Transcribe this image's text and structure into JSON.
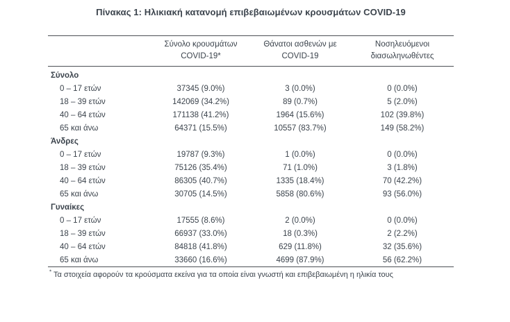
{
  "title": "Πίνακας 1: Ηλικιακή κατανομή επιβεβαιωμένων κρουσμάτων COVID-19",
  "colors": {
    "text": "#3b434c",
    "rule": "#4b4f54",
    "background": "#ffffff"
  },
  "table": {
    "columns": [
      {
        "line1": "Σύνολο κρουσμάτων",
        "line2": "COVID-19*"
      },
      {
        "line1": "Θάνατοι ασθενών με",
        "line2": "COVID-19"
      },
      {
        "line1": "Νοσηλευόμενοι",
        "line2": "διασωληνωθέντες"
      }
    ],
    "sections": [
      {
        "label": "Σύνολο",
        "rows": [
          {
            "label": "0 – 17 ετών",
            "cases": "37345 (9.0%)",
            "deaths": "3 (0.0%)",
            "intubated": "0 (0.0%)"
          },
          {
            "label": "18 – 39 ετών",
            "cases": "142069 (34.2%)",
            "deaths": "89 (0.7%)",
            "intubated": "5 (2.0%)"
          },
          {
            "label": "40 – 64 ετών",
            "cases": "171138 (41.2%)",
            "deaths": "1964 (15.6%)",
            "intubated": "102 (39.8%)"
          },
          {
            "label": "65 και άνω",
            "cases": "64371 (15.5%)",
            "deaths": "10557 (83.7%)",
            "intubated": "149 (58.2%)"
          }
        ]
      },
      {
        "label": "Άνδρες",
        "rows": [
          {
            "label": "0 – 17 ετών",
            "cases": "19787 (9.3%)",
            "deaths": "1 (0.0%)",
            "intubated": "0 (0.0%)"
          },
          {
            "label": "18 – 39 ετών",
            "cases": "75126 (35.4%)",
            "deaths": "71 (1.0%)",
            "intubated": "3 (1.8%)"
          },
          {
            "label": "40 – 64 ετών",
            "cases": "86305 (40.7%)",
            "deaths": "1335 (18.4%)",
            "intubated": "70 (42.2%)"
          },
          {
            "label": "65 και άνω",
            "cases": "30705 (14.5%)",
            "deaths": "5858 (80.6%)",
            "intubated": "93 (56.0%)"
          }
        ]
      },
      {
        "label": "Γυναίκες",
        "rows": [
          {
            "label": "0 – 17 ετών",
            "cases": "17555 (8.6%)",
            "deaths": "2 (0.0%)",
            "intubated": "0 (0.0%)"
          },
          {
            "label": "18 – 39 ετών",
            "cases": "66937 (33.0%)",
            "deaths": "18 (0.3%)",
            "intubated": "2 (2.2%)"
          },
          {
            "label": "40 – 64 ετών",
            "cases": "84818 (41.8%)",
            "deaths": "629 (11.8%)",
            "intubated": "32 (35.6%)"
          },
          {
            "label": "65 και άνω",
            "cases": "33660 (16.6%)",
            "deaths": "4699 (87.9%)",
            "intubated": "56 (62.2%)"
          }
        ]
      }
    ]
  },
  "footnote": {
    "marker": "*",
    "text": "Τα στοιχεία αφορούν τα κρούσματα εκείνα για τα οποία είναι γνωστή και επιβεβαιωμένη η ηλικία τους"
  }
}
